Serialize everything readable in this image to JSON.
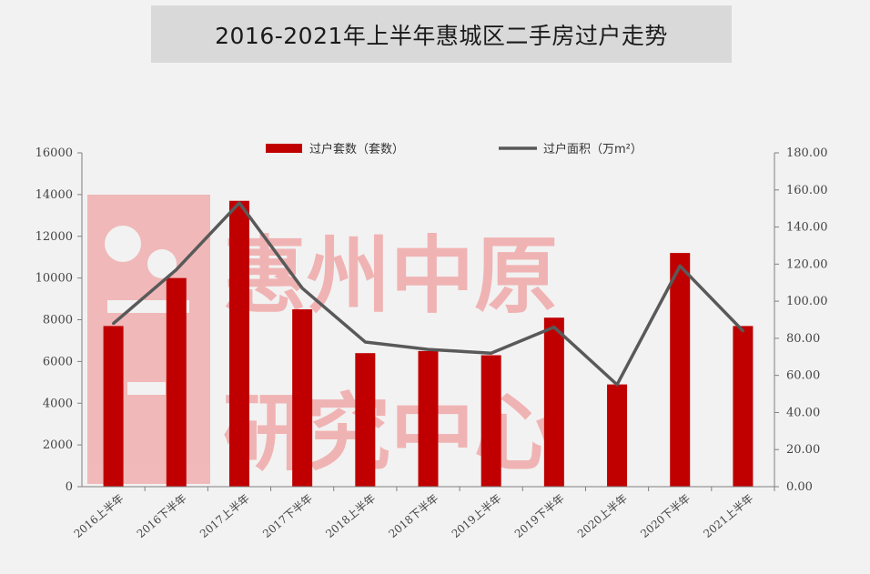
{
  "title": "2016-2021年上半年惠城区二手房过户走势",
  "watermark": {
    "line1": "惠州中原",
    "line2": "研究中心",
    "color": "#f08080"
  },
  "chart_data": {
    "type": "bar",
    "categories": [
      "2016上半年",
      "2016下半年",
      "2017上半年",
      "2017下半年",
      "2018上半年",
      "2018下半年",
      "2019上半年",
      "2019下半年",
      "2020上半年",
      "2020下半年",
      "2021上半年"
    ],
    "series": [
      {
        "name": "过户套数（套数）",
        "type": "bar",
        "axis": "left",
        "color": "#c00000",
        "values": [
          7700,
          10000,
          13700,
          8500,
          6400,
          6500,
          6300,
          8100,
          4900,
          11200,
          7700
        ]
      },
      {
        "name": "过户面积（万m²）",
        "type": "line",
        "axis": "right",
        "color": "#595959",
        "values": [
          88,
          117,
          153,
          107,
          78,
          74,
          72,
          86,
          55,
          119,
          84
        ]
      }
    ],
    "y_left": {
      "range": [
        0,
        16000
      ],
      "ticks": [
        "0",
        "2000",
        "4000",
        "6000",
        "8000",
        "10000",
        "12000",
        "14000",
        "16000"
      ]
    },
    "y_right": {
      "range": [
        0,
        180
      ],
      "ticks": [
        "0.00",
        "20.00",
        "40.00",
        "60.00",
        "80.00",
        "100.00",
        "120.00",
        "140.00",
        "160.00",
        "180.00"
      ]
    },
    "grid": false,
    "legend_position": "top"
  }
}
